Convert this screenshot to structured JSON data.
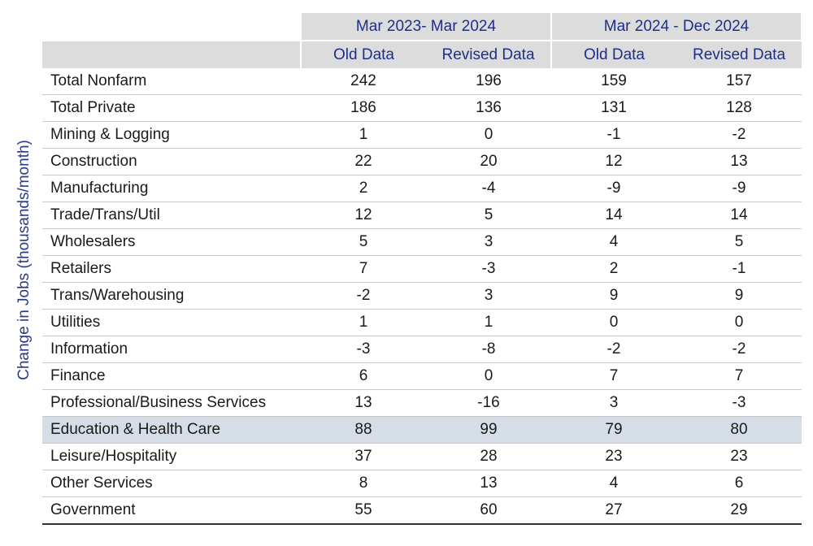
{
  "chart_data": {
    "type": "table",
    "ylabel": "Change in Jobs (thousands/month)",
    "periods": [
      "Mar 2023- Mar 2024",
      "Mar 2024 - Dec 2024"
    ],
    "columns": [
      "Old Data",
      "Revised Data",
      "Old Data",
      "Revised Data"
    ],
    "highlight_color": "#d5dde6",
    "header_text_color": "#1e2f8a",
    "rows": [
      {
        "name": "Total Nonfarm",
        "values": [
          "242",
          "196",
          "159",
          "157"
        ]
      },
      {
        "name": "Total Private",
        "values": [
          "186",
          "136",
          "131",
          "128"
        ]
      },
      {
        "name": "Mining & Logging",
        "values": [
          "1",
          "0",
          "-1",
          "-2"
        ]
      },
      {
        "name": "Construction",
        "values": [
          "22",
          "20",
          "12",
          "13"
        ]
      },
      {
        "name": "Manufacturing",
        "values": [
          "2",
          "-4",
          "-9",
          "-9"
        ]
      },
      {
        "name": "Trade/Trans/Util",
        "values": [
          "12",
          "5",
          "14",
          "14"
        ]
      },
      {
        "name": "Wholesalers",
        "values": [
          "5",
          "3",
          "4",
          "5"
        ]
      },
      {
        "name": "Retailers",
        "values": [
          "7",
          "-3",
          "2",
          "-1"
        ]
      },
      {
        "name": "Trans/Warehousing",
        "values": [
          "-2",
          "3",
          "9",
          "9"
        ]
      },
      {
        "name": "Utilities",
        "values": [
          "1",
          "1",
          "0",
          "0"
        ]
      },
      {
        "name": "Information",
        "values": [
          "-3",
          "-8",
          "-2",
          "-2"
        ]
      },
      {
        "name": "Finance",
        "values": [
          "6",
          "0",
          "7",
          "7"
        ]
      },
      {
        "name": "Professional/Business Services",
        "values": [
          "13",
          "-16",
          "3",
          "-3"
        ]
      },
      {
        "name": "Education & Health Care",
        "values": [
          "88",
          "99",
          "79",
          "80"
        ],
        "highlighted": true
      },
      {
        "name": "Leisure/Hospitality",
        "values": [
          "37",
          "28",
          "23",
          "23"
        ]
      },
      {
        "name": "Other Services",
        "values": [
          "8",
          "13",
          "4",
          "6"
        ]
      },
      {
        "name": "Government",
        "values": [
          "55",
          "60",
          "27",
          "29"
        ]
      }
    ]
  }
}
